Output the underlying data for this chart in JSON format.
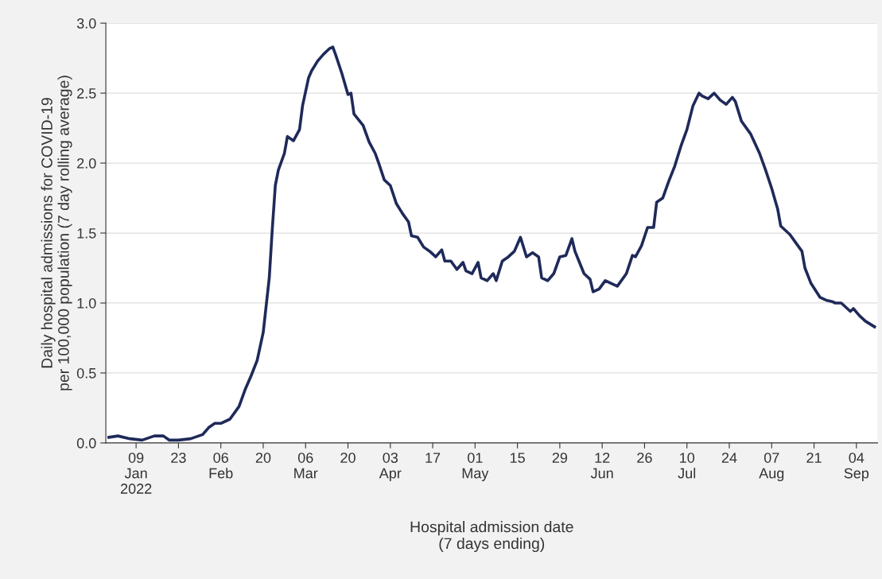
{
  "chart_data": {
    "type": "line",
    "xlabel": "Hospital admission date\n(7 days ending)",
    "ylabel": "Daily hospital admissions for COVID-19\nper 100,000 population (7 day rolling average)",
    "x": [
      "2021-12-31",
      "2022-01-03",
      "2022-01-07",
      "2022-01-11",
      "2022-01-15",
      "2022-01-18",
      "2022-01-20",
      "2022-01-23",
      "2022-01-27",
      "2022-01-31",
      "2022-02-02",
      "2022-02-04",
      "2022-02-06",
      "2022-02-09",
      "2022-02-12",
      "2022-02-14",
      "2022-02-16",
      "2022-02-18",
      "2022-02-20",
      "2022-02-22",
      "2022-02-23",
      "2022-02-24",
      "2022-02-25",
      "2022-02-27",
      "2022-02-28",
      "2022-03-02",
      "2022-03-04",
      "2022-03-05",
      "2022-03-07",
      "2022-03-08",
      "2022-03-10",
      "2022-03-12",
      "2022-03-14",
      "2022-03-15",
      "2022-03-16",
      "2022-03-18",
      "2022-03-20",
      "2022-03-21",
      "2022-03-22",
      "2022-03-25",
      "2022-03-27",
      "2022-03-29",
      "2022-03-30",
      "2022-04-01",
      "2022-04-03",
      "2022-04-05",
      "2022-04-07",
      "2022-04-09",
      "2022-04-10",
      "2022-04-12",
      "2022-04-14",
      "2022-04-16",
      "2022-04-18",
      "2022-04-20",
      "2022-04-21",
      "2022-04-23",
      "2022-04-25",
      "2022-04-27",
      "2022-04-28",
      "2022-04-30",
      "2022-05-02",
      "2022-05-03",
      "2022-05-05",
      "2022-05-07",
      "2022-05-08",
      "2022-05-10",
      "2022-05-12",
      "2022-05-14",
      "2022-05-16",
      "2022-05-18",
      "2022-05-20",
      "2022-05-22",
      "2022-05-23",
      "2022-05-25",
      "2022-05-27",
      "2022-05-29",
      "2022-05-31",
      "2022-06-02",
      "2022-06-03",
      "2022-06-06",
      "2022-06-08",
      "2022-06-09",
      "2022-06-11",
      "2022-06-13",
      "2022-06-15",
      "2022-06-17",
      "2022-06-20",
      "2022-06-22",
      "2022-06-23",
      "2022-06-25",
      "2022-06-27",
      "2022-06-29",
      "2022-06-30",
      "2022-07-02",
      "2022-07-04",
      "2022-07-06",
      "2022-07-08",
      "2022-07-10",
      "2022-07-12",
      "2022-07-14",
      "2022-07-15",
      "2022-07-17",
      "2022-07-19",
      "2022-07-21",
      "2022-07-23",
      "2022-07-25",
      "2022-07-26",
      "2022-07-28",
      "2022-07-30",
      "2022-07-31",
      "2022-08-03",
      "2022-08-05",
      "2022-08-07",
      "2022-08-09",
      "2022-08-10",
      "2022-08-13",
      "2022-08-15",
      "2022-08-17",
      "2022-08-18",
      "2022-08-20",
      "2022-08-23",
      "2022-08-25",
      "2022-08-27",
      "2022-08-28",
      "2022-08-30",
      "2022-09-02",
      "2022-09-03",
      "2022-09-05",
      "2022-09-07",
      "2022-09-10"
    ],
    "series": [
      {
        "color": "#1f2a5a",
        "values": [
          0.04,
          0.05,
          0.03,
          0.02,
          0.05,
          0.05,
          0.02,
          0.02,
          0.03,
          0.06,
          0.11,
          0.14,
          0.14,
          0.17,
          0.26,
          0.38,
          0.48,
          0.59,
          0.79,
          1.18,
          1.53,
          1.84,
          1.95,
          2.07,
          2.19,
          2.16,
          2.24,
          2.41,
          2.61,
          2.66,
          2.73,
          2.78,
          2.82,
          2.83,
          2.77,
          2.64,
          2.49,
          2.5,
          2.35,
          2.27,
          2.15,
          2.07,
          2.01,
          1.88,
          1.84,
          1.71,
          1.64,
          1.58,
          1.48,
          1.47,
          1.4,
          1.37,
          1.33,
          1.38,
          1.3,
          1.3,
          1.24,
          1.29,
          1.23,
          1.21,
          1.29,
          1.18,
          1.16,
          1.21,
          1.16,
          1.3,
          1.33,
          1.37,
          1.47,
          1.33,
          1.36,
          1.33,
          1.18,
          1.16,
          1.21,
          1.33,
          1.34,
          1.46,
          1.37,
          1.21,
          1.17,
          1.08,
          1.1,
          1.16,
          1.14,
          1.12,
          1.21,
          1.34,
          1.33,
          1.41,
          1.54,
          1.54,
          1.72,
          1.75,
          1.87,
          1.98,
          2.12,
          2.24,
          2.41,
          2.5,
          2.48,
          2.46,
          2.5,
          2.45,
          2.42,
          2.47,
          2.44,
          2.3,
          2.24,
          2.21,
          2.07,
          1.95,
          1.82,
          1.67,
          1.55,
          1.49,
          1.43,
          1.37,
          1.25,
          1.14,
          1.04,
          1.02,
          1.01,
          1.0,
          1.0,
          0.94,
          0.96,
          0.91,
          0.87,
          0.83
        ]
      }
    ],
    "xlim": [
      "2021-12-30",
      "2022-09-11"
    ],
    "xticks": [
      {
        "value": "2022-01-09",
        "label": "09\nJan\n2022"
      },
      {
        "value": "2022-01-23",
        "label": "23"
      },
      {
        "value": "2022-02-06",
        "label": "06\nFeb"
      },
      {
        "value": "2022-02-20",
        "label": "20"
      },
      {
        "value": "2022-03-06",
        "label": "06\nMar"
      },
      {
        "value": "2022-03-20",
        "label": "20"
      },
      {
        "value": "2022-04-03",
        "label": "03\nApr"
      },
      {
        "value": "2022-04-17",
        "label": "17"
      },
      {
        "value": "2022-05-01",
        "label": "01\nMay"
      },
      {
        "value": "2022-05-15",
        "label": "15"
      },
      {
        "value": "2022-05-29",
        "label": "29"
      },
      {
        "value": "2022-06-12",
        "label": "12\nJun"
      },
      {
        "value": "2022-06-26",
        "label": "26"
      },
      {
        "value": "2022-07-10",
        "label": "10\nJul"
      },
      {
        "value": "2022-07-24",
        "label": "24"
      },
      {
        "value": "2022-08-07",
        "label": "07\nAug"
      },
      {
        "value": "2022-08-21",
        "label": "21"
      },
      {
        "value": "2022-09-04",
        "label": "04\nSep"
      }
    ],
    "ylim": [
      0,
      3.0
    ],
    "yticks": [
      {
        "value": 0,
        "label": "0.0"
      },
      {
        "value": 0.5,
        "label": "0.5"
      },
      {
        "value": 1.0,
        "label": "1.0"
      },
      {
        "value": 1.5,
        "label": "1.5"
      },
      {
        "value": 2.0,
        "label": "2.0"
      },
      {
        "value": 2.5,
        "label": "2.5"
      },
      {
        "value": 3.0,
        "label": "3.0"
      }
    ],
    "grid": "y",
    "legend": false,
    "marker": "none",
    "line_style": "solid"
  }
}
